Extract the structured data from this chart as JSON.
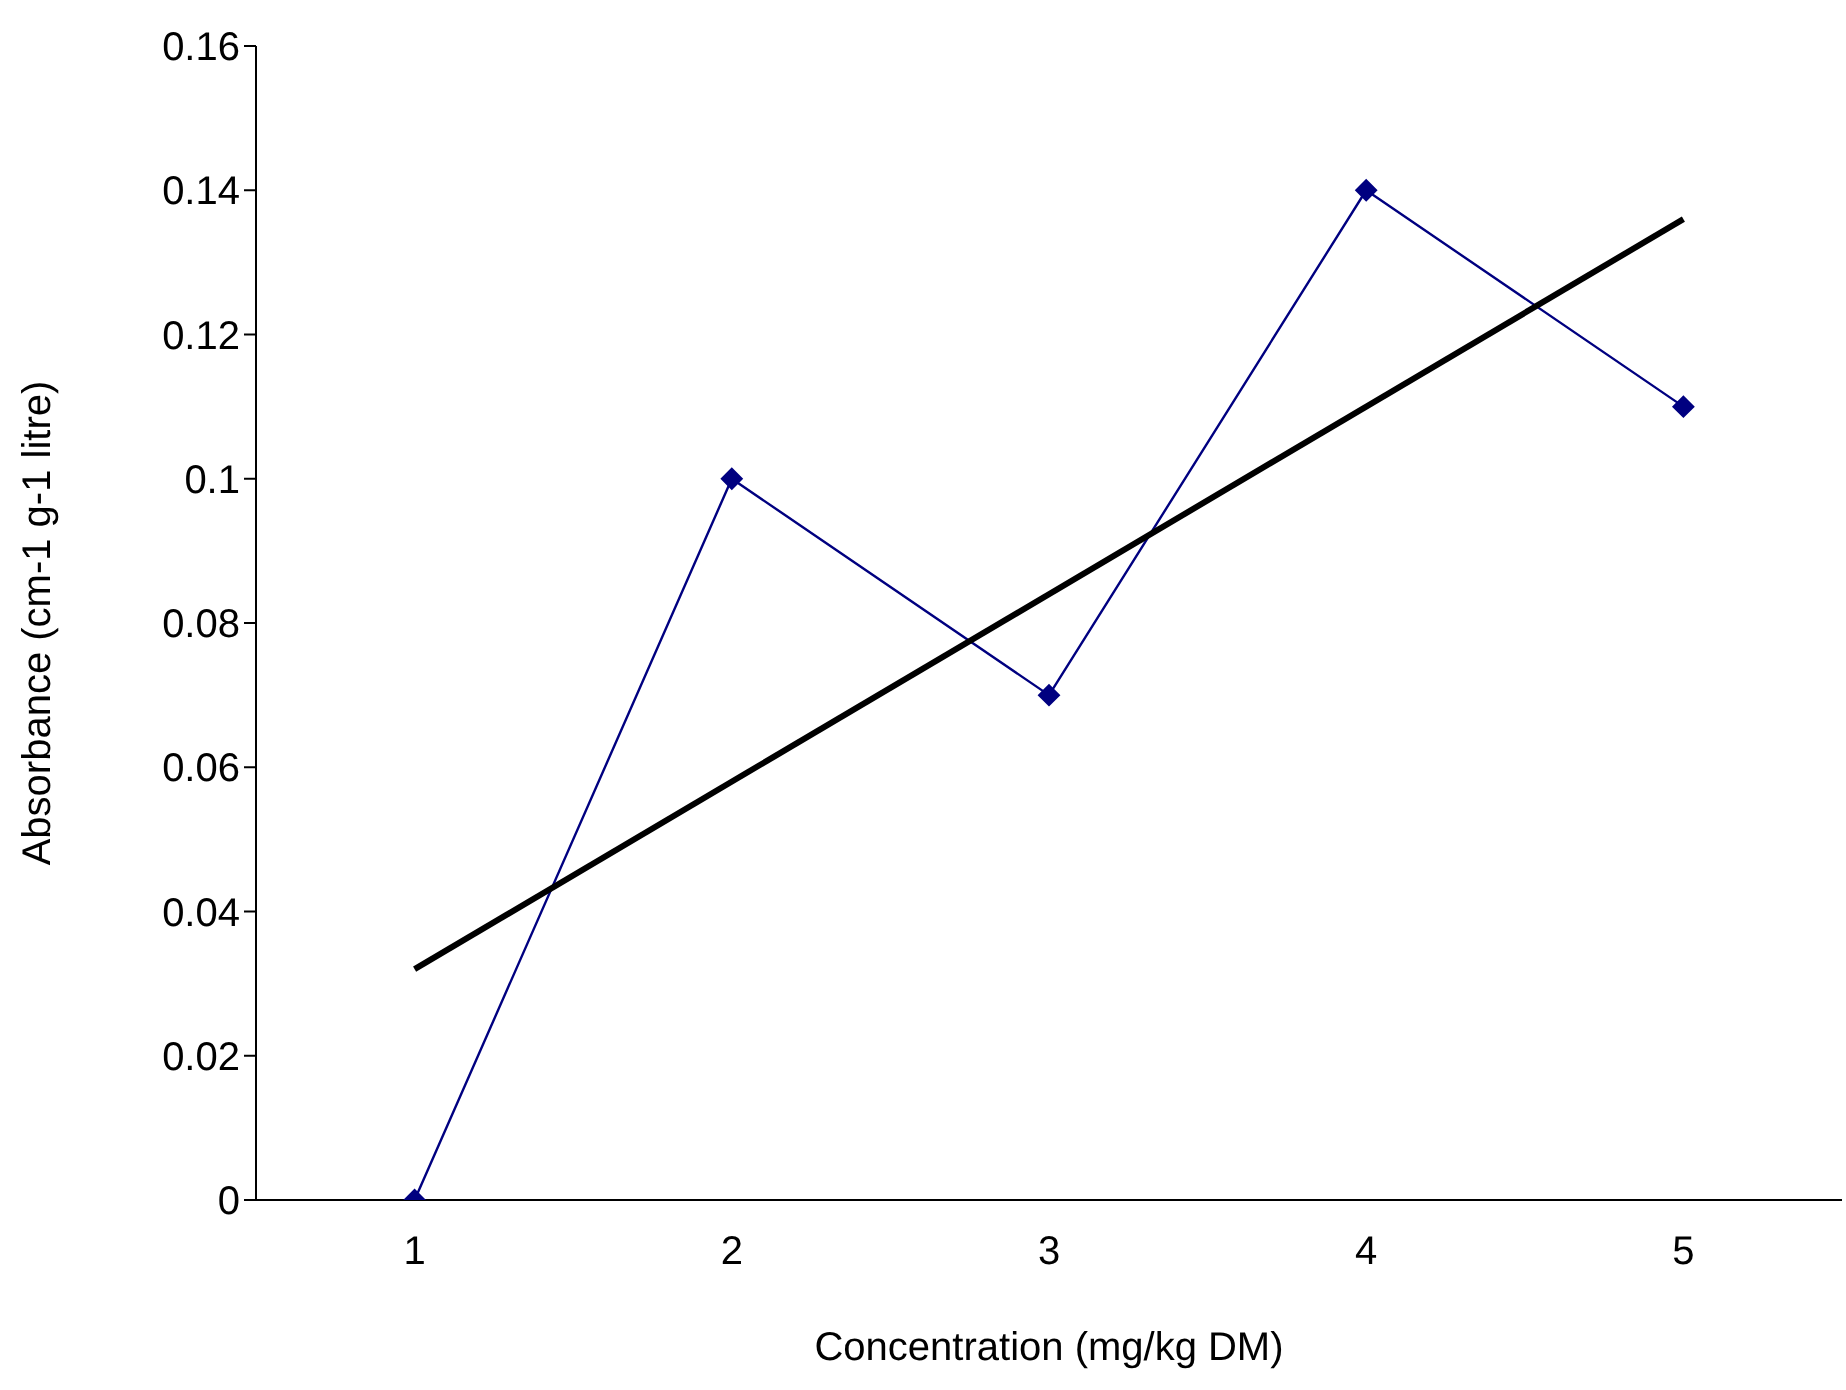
{
  "chart_data": {
    "type": "line",
    "xlabel": "Concentration (mg/kg  DM)",
    "ylabel": "Absorbance (cm-1 g-1 litre)",
    "categories": [
      "1",
      "2",
      "3",
      "4",
      "5"
    ],
    "series": [
      {
        "color": "#000080",
        "values": [
          0,
          0.1,
          0.07,
          0.14,
          0.11
        ],
        "marker": "diamond"
      },
      {
        "type": "line",
        "color": "#000000",
        "x": [
          "1",
          "5"
        ],
        "values": [
          0.032,
          0.136
        ],
        "marker": "none"
      }
    ],
    "ylim": [
      0,
      0.16
    ],
    "yticks": [
      0,
      0.02,
      0.04,
      0.06,
      0.08,
      0.1,
      0.12,
      0.14,
      0.16
    ],
    "grid": false
  }
}
